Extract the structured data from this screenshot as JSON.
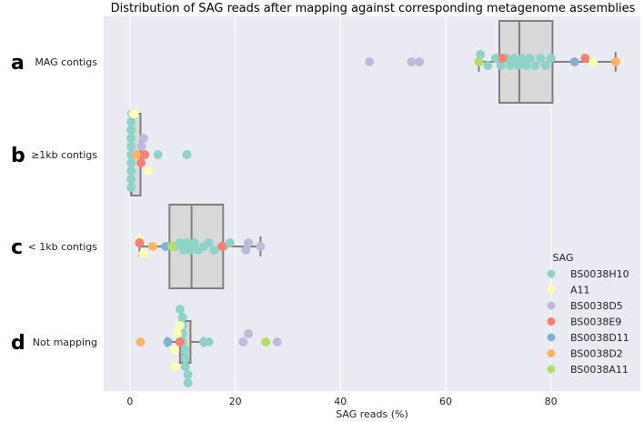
{
  "chart_data": {
    "type": "box-swarm",
    "title": "Distribution of SAG reads after mapping against corresponding metagenome assemblies",
    "xlabel": "SAG reads (%)",
    "ylabel": "",
    "xlim": [
      -5,
      97
    ],
    "xticks": [
      "0",
      "20",
      "40",
      "60",
      "80"
    ],
    "grid": true,
    "categories": [
      {
        "panel": "a",
        "label": "MAG contigs",
        "box": {
          "q1": 70.2,
          "median": 74,
          "q3": 80.3,
          "whisker_low": 66.3,
          "whisker_high": 92.3
        }
      },
      {
        "panel": "b",
        "label": "≥1kb contigs",
        "box": {
          "q1": 0.2,
          "median": 0.3,
          "q3": 2.0,
          "whisker_low": 0.1,
          "whisker_high": 2.0
        }
      },
      {
        "panel": "c",
        "label": "< 1kb contigs",
        "box": {
          "q1": 7.5,
          "median": 11.7,
          "q3": 17.7,
          "whisker_low": 1.8,
          "whisker_high": 24.8
        }
      },
      {
        "panel": "d",
        "label": "Not mapping",
        "box": {
          "q1": 9.5,
          "median": 10,
          "q3": 11.5,
          "whisker_low": 7,
          "whisker_high": 14
        }
      }
    ],
    "legend": {
      "title": "SAG",
      "placement": "lower-right"
    },
    "series": [
      {
        "name": "BS0038H10",
        "color": "#8dd3c7",
        "points": [
          [
            0,
            66.6,
            -2
          ],
          [
            0,
            68,
            1
          ],
          [
            0,
            69.5,
            -1
          ],
          [
            0,
            70.5,
            1
          ],
          [
            0,
            71.5,
            -1
          ],
          [
            0,
            72.3,
            1
          ],
          [
            0,
            73,
            -1
          ],
          [
            0,
            73.8,
            1
          ],
          [
            0,
            74.5,
            -1
          ],
          [
            0,
            75.3,
            1
          ],
          [
            0,
            76,
            -1
          ],
          [
            0,
            77,
            1
          ],
          [
            0,
            78,
            -1
          ],
          [
            0,
            79,
            1
          ],
          [
            0,
            80,
            -1
          ],
          [
            1,
            0.2,
            -4
          ],
          [
            1,
            0.2,
            -3
          ],
          [
            1,
            0.2,
            -2
          ],
          [
            1,
            0.2,
            -1
          ],
          [
            1,
            0.2,
            0
          ],
          [
            1,
            0.2,
            1
          ],
          [
            1,
            0.2,
            2
          ],
          [
            1,
            0.2,
            3
          ],
          [
            1,
            0.2,
            4
          ],
          [
            1,
            0.3,
            -5
          ],
          [
            1,
            5.3,
            0
          ],
          [
            1,
            10.8,
            0
          ],
          [
            2,
            8.5,
            0
          ],
          [
            2,
            9.5,
            -1
          ],
          [
            2,
            10.2,
            1
          ],
          [
            2,
            10.8,
            -1
          ],
          [
            2,
            11.5,
            1
          ],
          [
            2,
            12.2,
            -1
          ],
          [
            2,
            13,
            1
          ],
          [
            2,
            14,
            0
          ],
          [
            2,
            15,
            -1
          ],
          [
            2,
            16,
            1
          ],
          [
            2,
            17.8,
            0
          ],
          [
            2,
            19,
            -1
          ],
          [
            3,
            9.5,
            -4
          ],
          [
            3,
            10,
            -3
          ],
          [
            3,
            10,
            -2
          ],
          [
            3,
            10,
            -1
          ],
          [
            3,
            10,
            0
          ],
          [
            3,
            10.5,
            1
          ],
          [
            3,
            10.5,
            2
          ],
          [
            3,
            10.5,
            3
          ],
          [
            3,
            11,
            4
          ],
          [
            3,
            11,
            5
          ],
          [
            3,
            14,
            0
          ],
          [
            3,
            15,
            0
          ]
        ]
      },
      {
        "name": "A11",
        "color": "#ffffb3",
        "points": [
          [
            0,
            88,
            0
          ],
          [
            1,
            0.6,
            -5
          ],
          [
            1,
            0.8,
            -5
          ],
          [
            1,
            3.5,
            2
          ],
          [
            2,
            1.8,
            -2
          ],
          [
            2,
            2.5,
            2
          ],
          [
            3,
            8.5,
            1
          ],
          [
            3,
            9,
            -1
          ],
          [
            3,
            9.5,
            -2
          ],
          [
            3,
            8.5,
            3
          ]
        ]
      },
      {
        "name": "BS0038D5",
        "color": "#bebada",
        "points": [
          [
            0,
            45.5,
            0
          ],
          [
            0,
            53.5,
            0
          ],
          [
            0,
            55,
            0
          ],
          [
            1,
            2.2,
            -1
          ],
          [
            1,
            2.6,
            -2
          ],
          [
            2,
            22.5,
            -1
          ],
          [
            2,
            24.8,
            0
          ],
          [
            2,
            22,
            1
          ],
          [
            3,
            21.5,
            0
          ],
          [
            3,
            22.5,
            -1
          ],
          [
            3,
            28,
            0
          ]
        ]
      },
      {
        "name": "BS0038E9",
        "color": "#fb8072",
        "points": [
          [
            0,
            70.8,
            -1
          ],
          [
            0,
            86.5,
            -1
          ],
          [
            1,
            2.8,
            0
          ],
          [
            1,
            2.1,
            1
          ],
          [
            2,
            1.8,
            -1
          ],
          [
            2,
            17.5,
            0
          ],
          [
            3,
            9.5,
            0
          ]
        ]
      },
      {
        "name": "BS0038D11",
        "color": "#80b1d3",
        "points": [
          [
            0,
            84.5,
            0
          ],
          [
            2,
            6.8,
            0
          ],
          [
            3,
            7.2,
            0
          ]
        ]
      },
      {
        "name": "BS0038D2",
        "color": "#fdb462",
        "points": [
          [
            0,
            92.3,
            0
          ],
          [
            1,
            1.2,
            0
          ],
          [
            2,
            4.3,
            0
          ],
          [
            3,
            2,
            0
          ]
        ]
      },
      {
        "name": "BS0038A11",
        "color": "#b3de69",
        "points": [
          [
            0,
            66.3,
            0
          ],
          [
            2,
            8,
            0
          ],
          [
            3,
            25.8,
            0
          ]
        ]
      }
    ]
  }
}
